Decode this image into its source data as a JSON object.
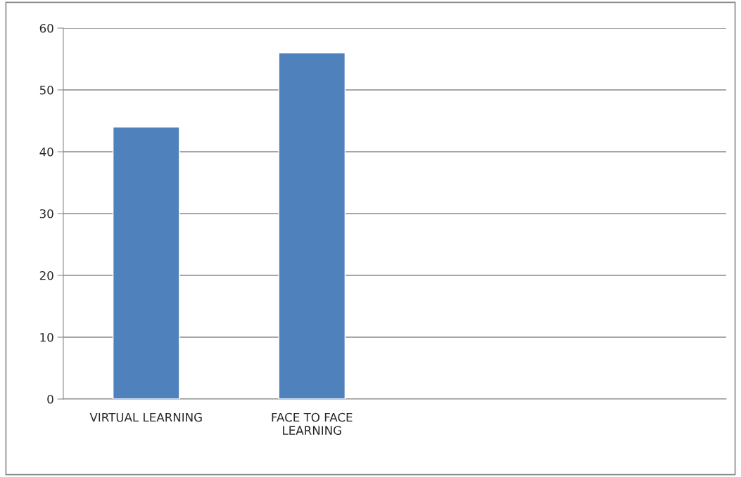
{
  "chart_data": {
    "type": "bar",
    "categories": [
      "VIRTUAL LEARNING",
      "FACE TO FACE LEARNING",
      null,
      null
    ],
    "values": [
      44,
      56,
      null,
      null
    ],
    "color": "#4f81bd",
    "ylim": [
      0,
      60
    ],
    "yticks": [
      0,
      10,
      20,
      30,
      40,
      50,
      60
    ],
    "grid": "y",
    "legend": false
  }
}
